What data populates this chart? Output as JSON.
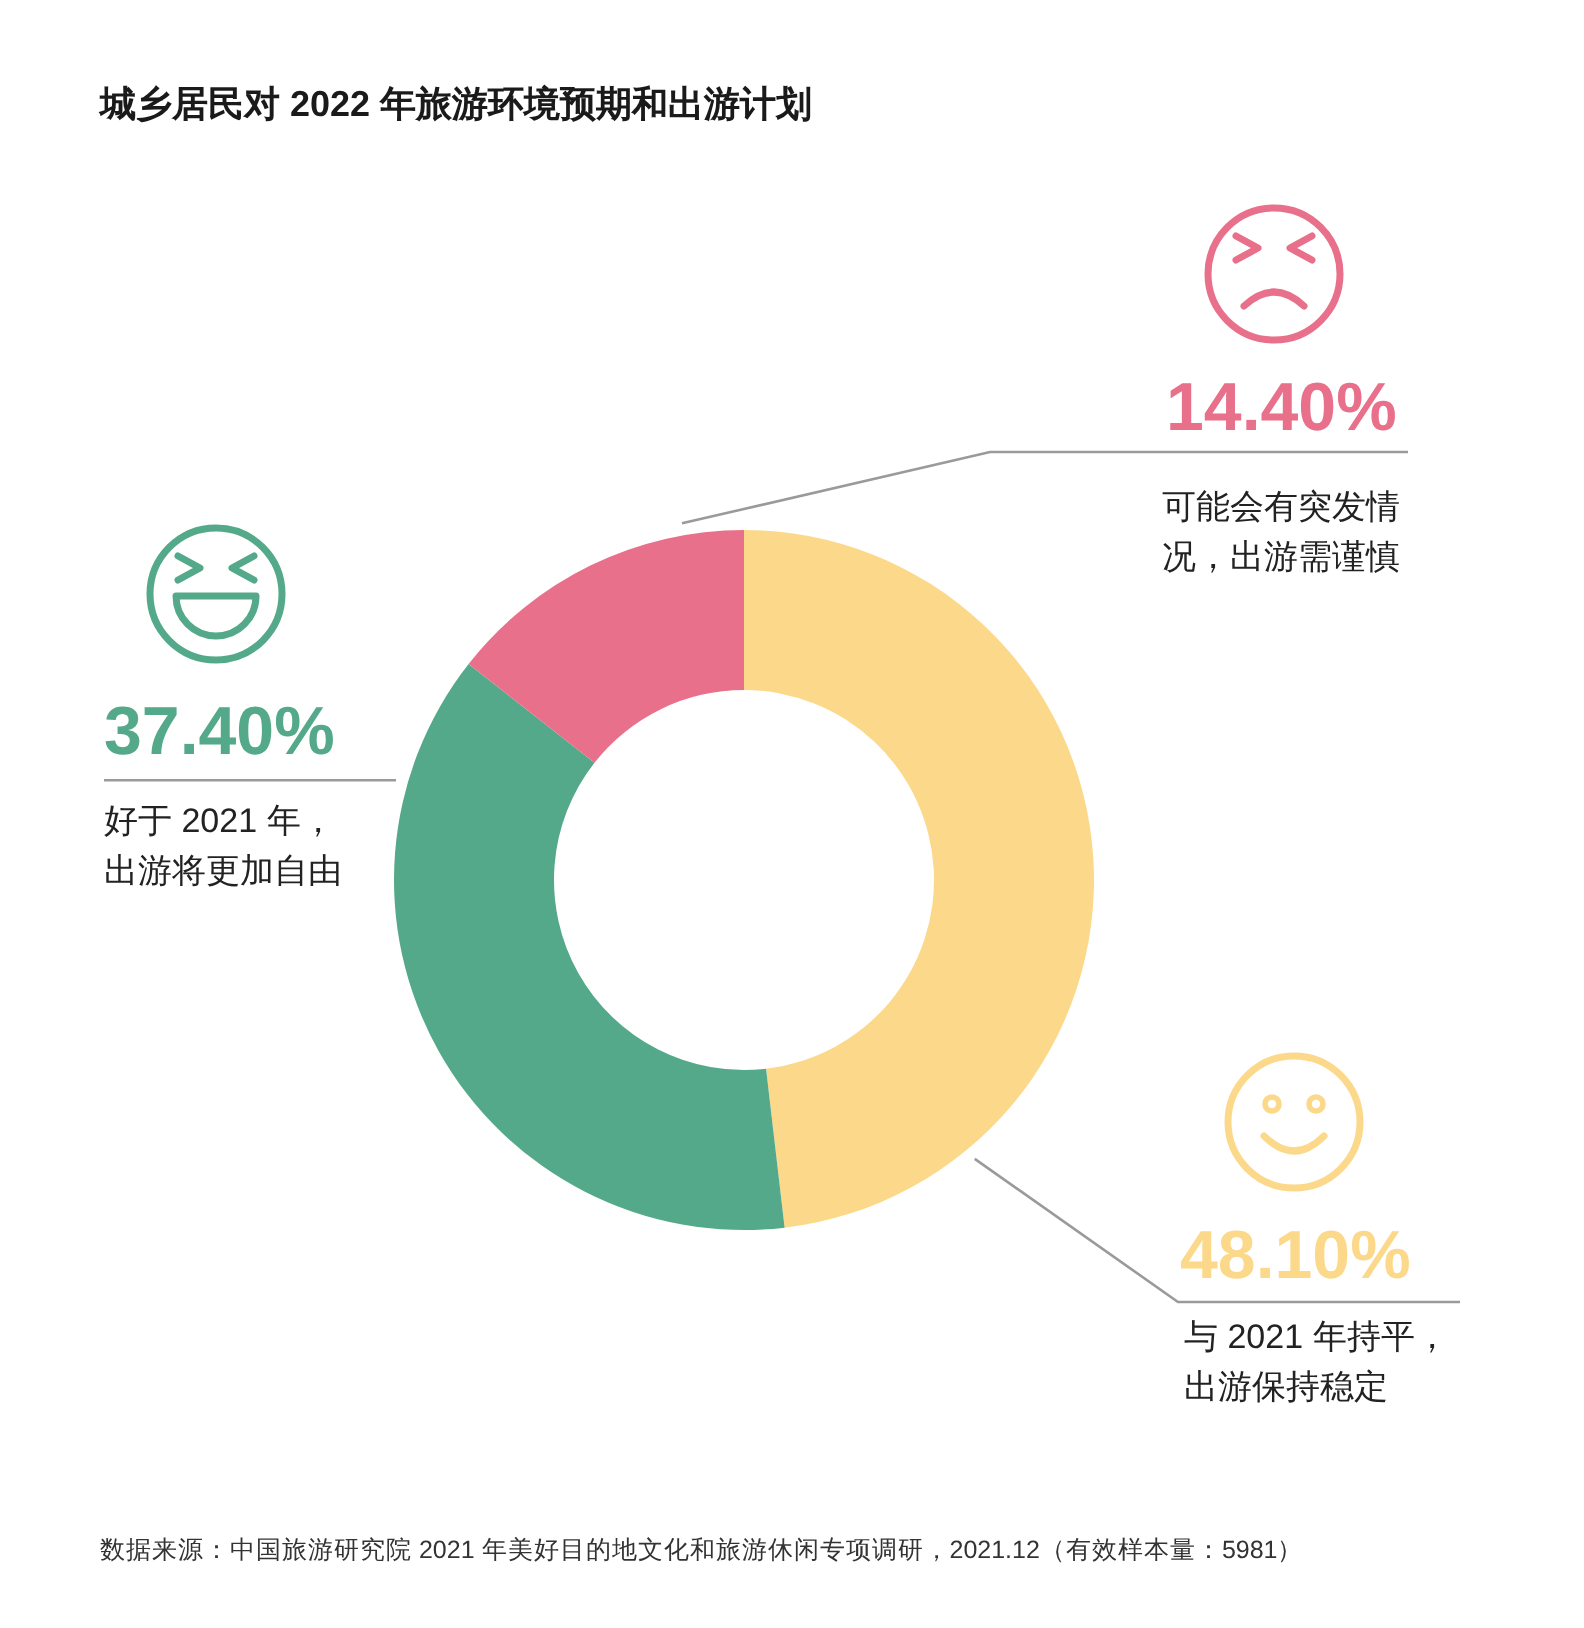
{
  "chart_data": {
    "type": "donut",
    "title": "城乡居民对 2022 年旅游环境预期和出游计划",
    "categories": [
      "与 2021 年持平，出游保持稳定",
      "好于 2021 年，出游将更加自由",
      "可能会有突发情况，出游需谨慎"
    ],
    "values": [
      48.1,
      37.4,
      14.4
    ],
    "colors": [
      "#fcd98a",
      "#54a98a",
      "#e8708a"
    ],
    "value_labels": [
      "48.10%",
      "37.40%",
      "14.40%"
    ],
    "annotations": [
      "数据来源：中国旅游研究院 2021 年美好目的地文化和旅游休闲专项调研，2021.12（有效样本量：5981）"
    ]
  }
}
